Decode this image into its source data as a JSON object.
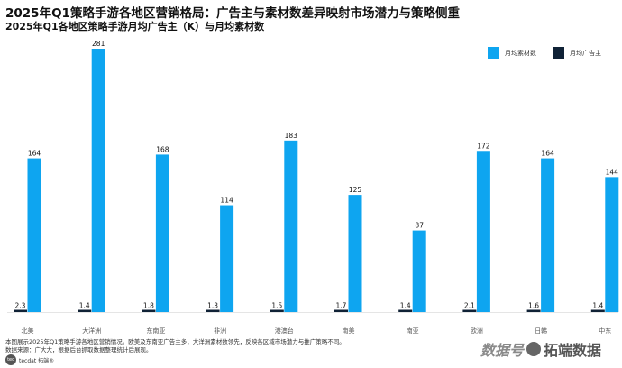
{
  "title": "2025年Q1策略手游各地区营销格局：广告主与素材数差异映射市场潜力与策略侧重",
  "subtitle": "2025年Q1各地区策略手游月均广告主（K）与月均素材数",
  "legend": {
    "material_label": "月均素材数",
    "advertiser_label": "月均广告主"
  },
  "colors": {
    "material": "#0ea5f0",
    "advertiser": "#102236"
  },
  "chart_data": {
    "type": "bar",
    "categories": [
      "北美",
      "大洋洲",
      "东南亚",
      "非洲",
      "港澳台",
      "南美",
      "南亚",
      "欧洲",
      "日韩",
      "中东"
    ],
    "series": [
      {
        "name": "月均广告主",
        "values": [
          2.3,
          1.4,
          1.8,
          1.3,
          1.5,
          1.7,
          1.4,
          2.1,
          1.6,
          1.4
        ]
      },
      {
        "name": "月均素材数",
        "values": [
          164,
          281,
          168,
          114,
          183,
          125,
          87,
          172,
          164,
          144
        ]
      }
    ],
    "ylim": [
      0,
      281
    ],
    "grid": false,
    "legend_position": "top-right"
  },
  "footer": {
    "note": "本图展示2025年Q1策略手游各地区营销情况。欧美及东南亚广告主多，大洋洲素材数领先，反映各区域市场潜力与推广策略不同。",
    "source": "数据来源：广大大，根据后台抓取数据整理统计后展现。"
  },
  "brand": {
    "logo": "tec",
    "name": "tecdat 拓端®"
  },
  "watermark": {
    "left": "数据号",
    "right": "拓端数据"
  }
}
